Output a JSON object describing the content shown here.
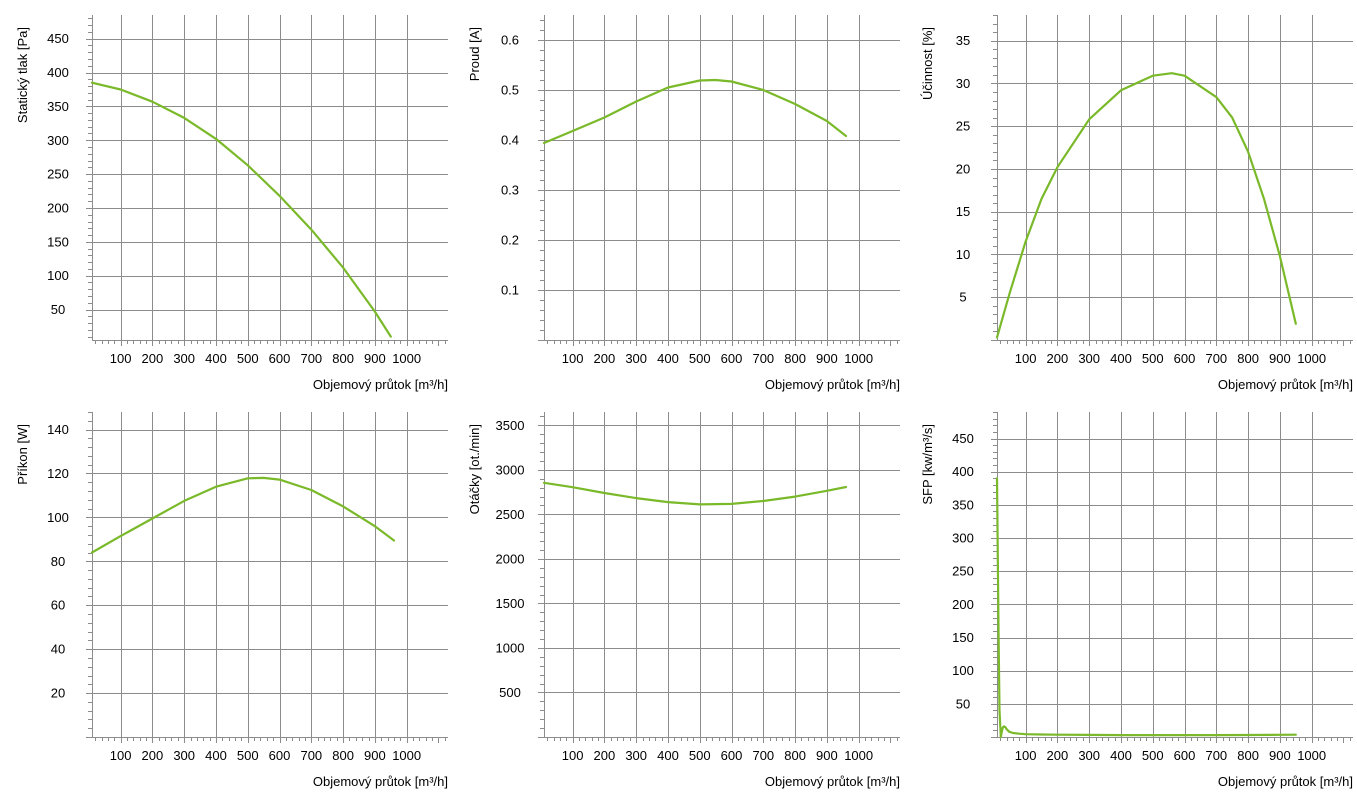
{
  "colors": {
    "series": "#7ab929",
    "grid": "#8c8c8c",
    "axis": "#8c8c8c"
  },
  "chart_data": [
    {
      "type": "line",
      "xlabel": "Objemový průtok [m³/h]",
      "ylabel": "Statický tlak [Pa]",
      "xlim": [
        10,
        1130
      ],
      "ylim": [
        5,
        485
      ],
      "xticks": [
        100,
        200,
        300,
        400,
        500,
        600,
        700,
        800,
        900,
        1000
      ],
      "xtick_labels": [
        "100",
        "200",
        "300",
        "400",
        "500",
        "600",
        "700",
        "800",
        "900",
        "1000"
      ],
      "yticks": [
        50,
        100,
        150,
        200,
        250,
        300,
        350,
        400,
        450
      ],
      "ytick_labels": [
        "50",
        "100",
        "150",
        "200",
        "250",
        "300",
        "350",
        "400",
        "450"
      ],
      "grid": true,
      "series": [
        {
          "x": [
            10,
            100,
            200,
            300,
            400,
            500,
            600,
            700,
            800,
            900,
            950
          ],
          "y": [
            385,
            375,
            357,
            333,
            302,
            263,
            218,
            168,
            112,
            47,
            10
          ]
        }
      ]
    },
    {
      "type": "line",
      "xlabel": "Objemový průtok [m³/h]",
      "ylabel": "Proud [A]",
      "xlim": [
        10,
        1130
      ],
      "ylim": [
        0,
        0.65
      ],
      "xticks": [
        100,
        200,
        300,
        400,
        500,
        600,
        700,
        800,
        900,
        1000
      ],
      "xtick_labels": [
        "100",
        "200",
        "300",
        "400",
        "500",
        "600",
        "700",
        "800",
        "900",
        "1000"
      ],
      "yticks": [
        0.1,
        0.2,
        0.3,
        0.4,
        0.5,
        0.6
      ],
      "ytick_labels": [
        "0.1",
        "0.2",
        "0.3",
        "0.4",
        "0.5",
        "0.6"
      ],
      "grid": true,
      "series": [
        {
          "x": [
            10,
            100,
            200,
            300,
            400,
            500,
            550,
            600,
            700,
            800,
            900,
            960
          ],
          "y": [
            0.394,
            0.418,
            0.445,
            0.477,
            0.505,
            0.519,
            0.52,
            0.517,
            0.5,
            0.472,
            0.438,
            0.408
          ]
        }
      ]
    },
    {
      "type": "line",
      "xlabel": "Objemový průtok [m³/h]",
      "ylabel": "Účinnost [%]",
      "xlim": [
        10,
        1130
      ],
      "ylim": [
        0,
        38
      ],
      "xticks": [
        100,
        200,
        300,
        400,
        500,
        600,
        700,
        800,
        900,
        1000
      ],
      "xtick_labels": [
        "100",
        "200",
        "300",
        "400",
        "500",
        "600",
        "700",
        "800",
        "900",
        "1000"
      ],
      "yticks": [
        5,
        10,
        15,
        20,
        25,
        30,
        35
      ],
      "ytick_labels": [
        "5",
        "10",
        "15",
        "20",
        "25",
        "30",
        "35"
      ],
      "grid": true,
      "series": [
        {
          "x": [
            10,
            50,
            100,
            150,
            200,
            300,
            400,
            500,
            560,
            600,
            700,
            750,
            800,
            850,
            900,
            950
          ],
          "y": [
            0.3,
            5.5,
            11.5,
            16.5,
            20.2,
            25.8,
            29.2,
            30.9,
            31.2,
            30.9,
            28.4,
            26.0,
            22.0,
            16.5,
            9.8,
            1.9
          ]
        }
      ]
    },
    {
      "type": "line",
      "xlabel": "Objemový průtok [m³/h]",
      "ylabel": "Příkon [W]",
      "xlim": [
        10,
        1130
      ],
      "ylim": [
        0,
        148
      ],
      "xticks": [
        100,
        200,
        300,
        400,
        500,
        600,
        700,
        800,
        900,
        1000
      ],
      "xtick_labels": [
        "100",
        "200",
        "300",
        "400",
        "500",
        "600",
        "700",
        "800",
        "900",
        "1000"
      ],
      "yticks": [
        20,
        40,
        60,
        80,
        100,
        120,
        140
      ],
      "ytick_labels": [
        "20",
        "40",
        "60",
        "80",
        "100",
        "120",
        "140"
      ],
      "grid": true,
      "series": [
        {
          "x": [
            10,
            100,
            200,
            300,
            400,
            500,
            550,
            600,
            700,
            800,
            900,
            960
          ],
          "y": [
            84,
            91.5,
            99.5,
            107.5,
            114,
            117.8,
            118,
            117.2,
            112.5,
            105,
            96,
            89.5
          ]
        }
      ]
    },
    {
      "type": "line",
      "xlabel": "Objemový průtok [m³/h]",
      "ylabel": "Otáčky [ot./min]",
      "xlim": [
        10,
        1130
      ],
      "ylim": [
        0,
        3650
      ],
      "xticks": [
        100,
        200,
        300,
        400,
        500,
        600,
        700,
        800,
        900,
        1000
      ],
      "xtick_labels": [
        "100",
        "200",
        "300",
        "400",
        "500",
        "600",
        "700",
        "800",
        "900",
        "1000"
      ],
      "yticks": [
        500,
        1000,
        1500,
        2000,
        2500,
        3000,
        3500
      ],
      "ytick_labels": [
        "500",
        "1000",
        "1500",
        "2000",
        "2500",
        "3000",
        "3500"
      ],
      "grid": true,
      "series": [
        {
          "x": [
            10,
            100,
            200,
            300,
            400,
            500,
            600,
            700,
            800,
            900,
            960
          ],
          "y": [
            2855,
            2805,
            2740,
            2683,
            2638,
            2612,
            2618,
            2650,
            2700,
            2765,
            2808
          ]
        }
      ]
    },
    {
      "type": "line",
      "xlabel": "Objemový průtok [m³/h]",
      "ylabel": "SFP [kw/m³/s]",
      "xlim": [
        10,
        1130
      ],
      "ylim": [
        0,
        490
      ],
      "xticks": [
        100,
        200,
        300,
        400,
        500,
        600,
        700,
        800,
        900,
        1000
      ],
      "xtick_labels": [
        "100",
        "200",
        "300",
        "400",
        "500",
        "600",
        "700",
        "800",
        "900",
        "1000"
      ],
      "yticks": [
        50,
        100,
        150,
        200,
        250,
        300,
        350,
        400,
        450
      ],
      "ytick_labels": [
        "50",
        "100",
        "150",
        "200",
        "250",
        "300",
        "350",
        "400",
        "450"
      ],
      "grid": true,
      "series": [
        {
          "x": [
            10,
            12,
            15,
            18,
            22,
            25,
            28,
            32,
            36,
            40,
            48,
            60,
            80,
            100,
            150,
            200,
            300,
            400,
            500,
            600,
            700,
            800,
            900,
            950
          ],
          "y": [
            390,
            300,
            150,
            40,
            0,
            8,
            14,
            16,
            15,
            12,
            8,
            6,
            5,
            4.2,
            3.8,
            3.4,
            3.1,
            2.9,
            2.8,
            2.8,
            2.9,
            3.0,
            3.3,
            3.5
          ]
        }
      ]
    }
  ]
}
